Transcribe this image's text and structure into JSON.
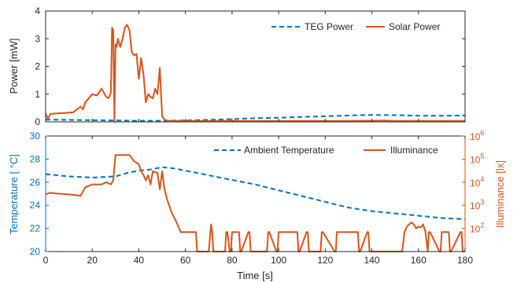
{
  "colors": {
    "blue": "#0072BD",
    "orange": "#D95319",
    "axis": "#262626",
    "right_axis": "#D95319",
    "left_axis_bottom": "#0072BD"
  },
  "chart_data": [
    {
      "type": "line",
      "ylabel": "Power [mW]",
      "xlim": [
        0,
        180
      ],
      "ylim": [
        0,
        4
      ],
      "y_ticks": [
        "0",
        "1",
        "2",
        "3",
        "4"
      ],
      "x_ticks": [
        "0",
        "20",
        "40",
        "60",
        "80",
        "100",
        "120",
        "140",
        "160",
        "180"
      ],
      "grid": false,
      "legend_position": "top-right",
      "series": [
        {
          "name": "TEG Power",
          "style": "dashed",
          "color": "#0072BD",
          "x": [
            0,
            10,
            20,
            30,
            40,
            50,
            60,
            70,
            80,
            90,
            100,
            110,
            120,
            130,
            140,
            150,
            160,
            170,
            180
          ],
          "y": [
            0.08,
            0.07,
            0.06,
            0.05,
            0.04,
            0.04,
            0.05,
            0.07,
            0.1,
            0.13,
            0.15,
            0.18,
            0.2,
            0.23,
            0.25,
            0.24,
            0.22,
            0.22,
            0.23
          ]
        },
        {
          "name": "Solar Power",
          "style": "solid",
          "color": "#D95319",
          "x": [
            0,
            1,
            2,
            4,
            8,
            12,
            15,
            16,
            17,
            18,
            20,
            22,
            24,
            26,
            27,
            28,
            28.5,
            29,
            29.5,
            30,
            30.5,
            31,
            32,
            33,
            34,
            35,
            36,
            37,
            38,
            39,
            40,
            41,
            42,
            43,
            44,
            45,
            46,
            47,
            48,
            49,
            50,
            51,
            52,
            53,
            55,
            60,
            70,
            90,
            110,
            130,
            140,
            145,
            150,
            160,
            170,
            180
          ],
          "y": [
            0.3,
            0.1,
            0.28,
            0.3,
            0.32,
            0.35,
            0.55,
            0.45,
            0.7,
            0.8,
            1.0,
            0.95,
            1.2,
            0.9,
            0.85,
            1.05,
            3.4,
            3.3,
            0.0,
            2.8,
            2.7,
            3.0,
            2.7,
            3.0,
            3.4,
            3.5,
            3.3,
            2.5,
            2.4,
            2.45,
            1.55,
            2.3,
            1.7,
            0.7,
            1.0,
            0.9,
            0.85,
            1.2,
            1.0,
            1.95,
            0.2,
            0.08,
            0.05,
            0.04,
            0.03,
            0.03,
            0.03,
            0.03,
            0.03,
            0.03,
            0.04,
            0.05,
            0.03,
            0.03,
            0.03,
            0.03
          ]
        }
      ]
    },
    {
      "type": "line",
      "xlabel": "Time [s]",
      "ylabel_left": "Temperature [   °C]",
      "ylabel_right": "Illuminance [lx]",
      "xlim": [
        0,
        180
      ],
      "ylim_left": [
        20,
        30
      ],
      "y_ticks_left": [
        "20",
        "22",
        "24",
        "26",
        "28",
        "30"
      ],
      "x_ticks": [
        "0",
        "20",
        "40",
        "60",
        "80",
        "100",
        "120",
        "140",
        "160",
        "180"
      ],
      "y_scale_right": "log",
      "ylim_right": [
        10,
        1000000
      ],
      "y_ticks_right_base": "10",
      "y_ticks_right_exp": [
        "2",
        "3",
        "4",
        "5",
        "6"
      ],
      "grid": false,
      "legend_position": "top-right",
      "series": [
        {
          "name": "Ambient Temperature",
          "axis": "left",
          "style": "dashed",
          "color": "#0072BD",
          "x": [
            0,
            10,
            20,
            30,
            35,
            40,
            45,
            50,
            55,
            60,
            65,
            70,
            80,
            90,
            100,
            110,
            120,
            130,
            140,
            150,
            160,
            170,
            180
          ],
          "y": [
            26.7,
            26.5,
            26.4,
            26.5,
            26.8,
            27.0,
            27.1,
            27.3,
            27.2,
            27.0,
            26.8,
            26.6,
            26.2,
            25.8,
            25.3,
            24.8,
            24.3,
            23.8,
            23.5,
            23.3,
            23.1,
            22.9,
            22.8
          ]
        },
        {
          "name": "Illuminance",
          "axis": "right",
          "style": "solid",
          "color": "#D95319",
          "x": [
            0,
            2,
            5,
            10,
            15,
            17,
            20,
            24,
            26,
            28,
            29,
            30,
            32,
            35,
            36,
            38,
            40,
            41,
            42,
            43,
            44,
            45,
            46,
            48,
            49,
            50,
            51,
            52,
            54,
            56,
            58,
            60,
            62,
            64,
            64.5,
            65,
            70,
            71,
            71.5,
            72,
            77,
            77.5,
            78,
            79,
            79.5,
            80,
            83,
            83.5,
            84,
            87,
            87.5,
            88,
            95,
            95.5,
            96,
            99,
            99.5,
            100,
            108,
            108.5,
            109,
            112,
            112.5,
            113,
            118,
            118.5,
            119,
            124,
            124.5,
            125,
            134,
            134.5,
            135,
            138,
            138.5,
            139,
            153,
            154,
            155,
            156,
            157,
            158,
            159,
            160,
            161,
            162,
            163,
            164,
            164.5,
            165,
            169,
            169.5,
            170,
            173,
            173.5,
            174,
            178,
            178.5,
            179,
            180
          ],
          "y": [
            3000,
            3500,
            3200,
            3000,
            2600,
            6000,
            8000,
            8000,
            10000,
            8000,
            12000,
            150000,
            150000,
            150000,
            150000,
            80000,
            60000,
            30000,
            20000,
            12000,
            20000,
            8000,
            30000,
            25000,
            5000,
            30000,
            5000,
            2000,
            500,
            200,
            70,
            70,
            70,
            70,
            70,
            10,
            10,
            150,
            70,
            10,
            10,
            70,
            70,
            10,
            10,
            70,
            70,
            10,
            10,
            70,
            70,
            10,
            10,
            70,
            70,
            10,
            10,
            70,
            70,
            10,
            10,
            70,
            70,
            10,
            10,
            70,
            70,
            10,
            10,
            70,
            70,
            10,
            10,
            70,
            70,
            10,
            10,
            70,
            120,
            150,
            180,
            150,
            100,
            120,
            110,
            150,
            70,
            10,
            70,
            70,
            10,
            10,
            70,
            70,
            10,
            10,
            70,
            70,
            10,
            10
          ]
        }
      ]
    }
  ]
}
